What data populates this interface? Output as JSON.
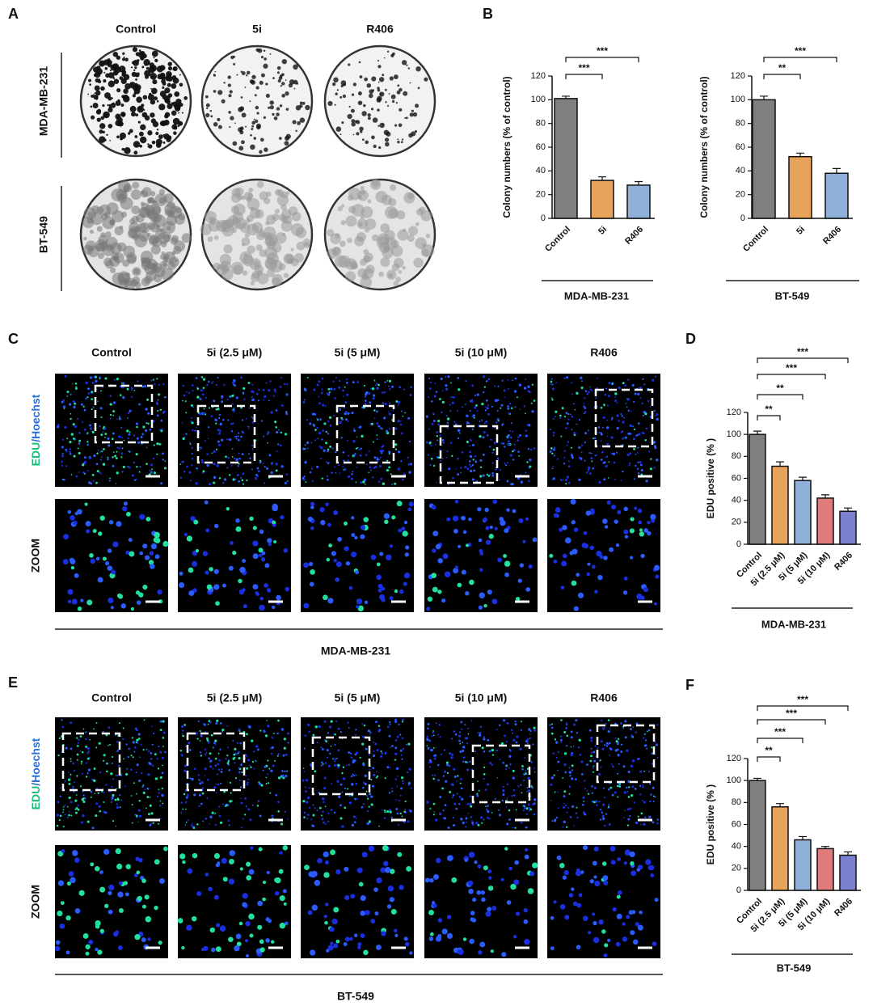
{
  "panel_labels": [
    "A",
    "B",
    "C",
    "D",
    "E",
    "F"
  ],
  "colony": {
    "columns": [
      "Control",
      "5i",
      "R406"
    ],
    "rows": [
      "MDA-MB-231",
      "BT-549"
    ]
  },
  "edu": [
    {
      "columns": [
        "Control",
        "5i (2.5 μM)",
        "5i (5 μM)",
        "5i (10 μM)",
        "R406"
      ],
      "stain_edu": "EDU",
      "stain_hoechst": "/Hoechst",
      "zoom": "ZOOM",
      "cell_line": "MDA-MB-231"
    },
    {
      "columns": [
        "Control",
        "5i (2.5 μM)",
        "5i (5 μM)",
        "5i (10 μM)",
        "R406"
      ],
      "stain_edu": "EDU",
      "stain_hoechst": "/Hoechst",
      "zoom": "ZOOM",
      "cell_line": "BT-549"
    }
  ],
  "chart_data": [
    {
      "type": "bar",
      "ylabel": "Colony numbers (%  of control)",
      "categories": [
        "Control",
        "5i",
        "R406"
      ],
      "values": [
        101,
        32,
        28
      ],
      "errors": [
        2,
        3,
        3
      ],
      "colors": [
        "#7f7f7f",
        "#e8a35a",
        "#8fb0d9"
      ],
      "significance": [
        null,
        "***",
        "***"
      ],
      "ylim": [
        0,
        120
      ],
      "yticks": [
        0,
        20,
        40,
        60,
        80,
        100,
        120
      ],
      "group_label": "MDA-MB-231"
    },
    {
      "type": "bar",
      "ylabel": "Colony numbers (%  of control)",
      "categories": [
        "Control",
        "5i",
        "R406"
      ],
      "values": [
        100,
        52,
        38
      ],
      "errors": [
        3,
        3,
        4
      ],
      "colors": [
        "#7f7f7f",
        "#e8a35a",
        "#8fb0d9"
      ],
      "significance": [
        null,
        "**",
        "***"
      ],
      "ylim": [
        0,
        120
      ],
      "yticks": [
        0,
        20,
        40,
        60,
        80,
        100,
        120
      ],
      "group_label": "BT-549"
    },
    {
      "type": "bar",
      "ylabel": "EDU positive (% )",
      "categories": [
        "Control",
        "5i (2.5 μM)",
        "5i (5 μM)",
        "5i (10 μM)",
        "R406"
      ],
      "values": [
        100,
        71,
        58,
        42,
        30
      ],
      "errors": [
        3,
        4,
        3,
        3,
        3
      ],
      "colors": [
        "#7f7f7f",
        "#e8a35a",
        "#8fb0d9",
        "#e07b7b",
        "#7b7fd0"
      ],
      "significance": [
        null,
        "**",
        "**",
        "***",
        "***"
      ],
      "ylim": [
        0,
        120
      ],
      "yticks": [
        0,
        20,
        40,
        60,
        80,
        100,
        120
      ],
      "group_label": "MDA-MB-231"
    },
    {
      "type": "bar",
      "ylabel": "EDU positive (% )",
      "categories": [
        "Control",
        "5i (2.5 μM)",
        "5i (5 μM)",
        "5i (10 μM)",
        "R406"
      ],
      "values": [
        100,
        76,
        46,
        38,
        32
      ],
      "errors": [
        2,
        3,
        3,
        2,
        3
      ],
      "colors": [
        "#7f7f7f",
        "#e8a35a",
        "#8fb0d9",
        "#e07b7b",
        "#7b7fd0"
      ],
      "significance": [
        null,
        "**",
        "***",
        "***",
        "***"
      ],
      "ylim": [
        0,
        120
      ],
      "yticks": [
        0,
        20,
        40,
        60,
        80,
        100,
        120
      ],
      "group_label": "BT-549"
    }
  ]
}
